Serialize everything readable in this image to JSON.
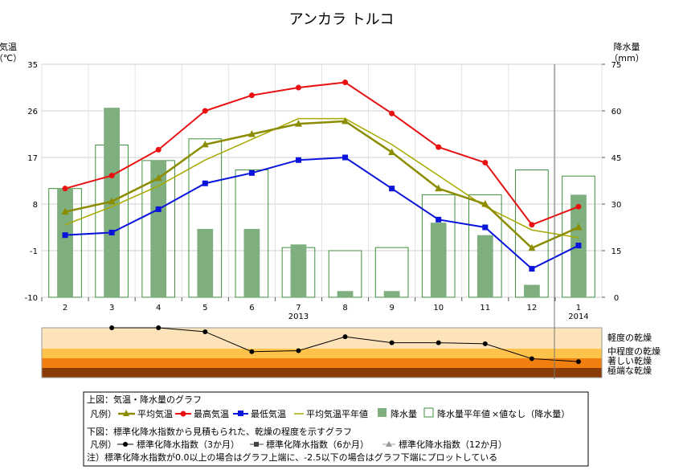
{
  "colors": {
    "mean_temp": "#8c8c00",
    "max_temp": "#e81010",
    "min_temp": "#0a14dc",
    "normal_temp": "#a8a800",
    "precip_bar": "#7fae7f",
    "precip_normal_stroke": "#3f8f3f",
    "zone_light": "#fde3ba",
    "zone_moderate": "#ffc24a",
    "zone_severe": "#f07f10",
    "zone_extreme": "#8a3a06",
    "spi_line": "#000000"
  },
  "chart_data": [
    {
      "type": "line",
      "title": "アンカラ トルコ",
      "ylabel": "気温\n（℃）",
      "y2label": "降水量\n（mm）",
      "ylim": [
        -10,
        35
      ],
      "y2lim": [
        0,
        75
      ],
      "y_ticks": [
        35,
        26,
        17,
        8,
        -1,
        -10
      ],
      "y2_ticks": [
        75,
        60,
        45,
        30,
        15,
        0
      ],
      "categories": [
        "2",
        "3",
        "4",
        "5",
        "6",
        "7",
        "8",
        "9",
        "10",
        "11",
        "12",
        "1"
      ],
      "year_labels": [
        {
          "at": "7",
          "label": "2013"
        },
        {
          "at": "1",
          "label": "2014"
        }
      ],
      "grid": true,
      "series": [
        {
          "name": "平均気温",
          "key": "mean_temp",
          "kind": "line",
          "marker": "triangle",
          "values": [
            6.5,
            8.5,
            13,
            19.5,
            21.5,
            23.5,
            24,
            18,
            11,
            8,
            -0.5,
            3.5
          ]
        },
        {
          "name": "最高気温",
          "key": "max_temp",
          "kind": "line",
          "marker": "circle",
          "values": [
            11,
            13.5,
            18.5,
            26,
            29,
            30.5,
            31.5,
            25.5,
            19,
            16,
            4,
            7.5
          ]
        },
        {
          "name": "最低気温",
          "key": "min_temp",
          "kind": "line",
          "marker": "square",
          "values": [
            2,
            2.5,
            7,
            12,
            14,
            16.5,
            17,
            11,
            5,
            3.5,
            -4.5,
            0
          ]
        },
        {
          "name": "平均気温平年値",
          "key": "normal_temp",
          "kind": "line",
          "marker": "none",
          "values": [
            4,
            7.5,
            11.5,
            16.5,
            20.5,
            24.5,
            24.5,
            19.5,
            13.5,
            7.5,
            3,
            1.5
          ]
        },
        {
          "name": "降水量",
          "key": "precip_bar",
          "kind": "bar",
          "axis": "right",
          "values": [
            35,
            61,
            44,
            22,
            22,
            17,
            2,
            2,
            24,
            20,
            4,
            33
          ]
        },
        {
          "name": "降水量平年値",
          "key": "precip_normal",
          "kind": "bar-outline",
          "axis": "right",
          "values": [
            35,
            49,
            44,
            51,
            41,
            16,
            15,
            16,
            33,
            33,
            41,
            39
          ]
        }
      ]
    },
    {
      "type": "line",
      "categories": [
        "2",
        "3",
        "4",
        "5",
        "6",
        "7",
        "8",
        "9",
        "10",
        "11",
        "12",
        "1"
      ],
      "ylim": [
        -2.5,
        0
      ],
      "zones": [
        "軽度の乾燥",
        "中程度の乾燥",
        "著しい乾燥",
        "極端な乾燥"
      ],
      "series": [
        {
          "name": "標準化降水指数（3か月）",
          "key": "spi3",
          "values": [
            null,
            0,
            0,
            -0.2,
            -1.2,
            -1.15,
            -0.45,
            -0.75,
            -0.75,
            -0.8,
            -1.55,
            -1.7
          ]
        }
      ]
    }
  ],
  "legend": {
    "line1": "上図：気温・降水量のグラフ",
    "line2_prefix": "凡例）",
    "mean": "平均気温",
    "max": "最高気温",
    "min": "最低気温",
    "normal": "平均気温平年値",
    "precip": "降水量",
    "precip_normal": "降水量平年値",
    "no_value": "×値なし（降水量）",
    "line3": "下図：標準化降水指数から見積もられた、乾燥の程度を示すグラフ",
    "line4_prefix": "凡例）",
    "spi3": "標準化降水指数（3か月）",
    "spi6": "標準化降水指数（6か月）",
    "spi12": "標準化降水指数（12か月）",
    "note": "注）標準化降水指数が0.0以上の場合はグラフ上端に、-2.5以下の場合はグラフ下端にプロットしている"
  }
}
